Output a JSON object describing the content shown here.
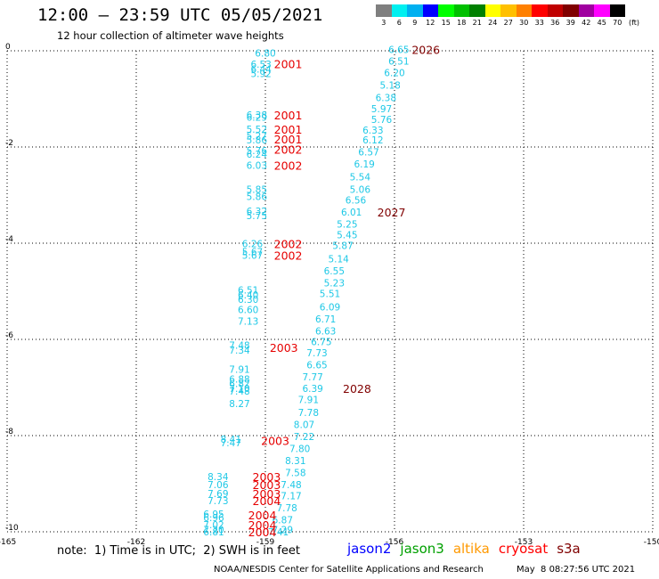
{
  "header": {
    "title": "12:00 – 23:59 UTC 05/05/2021",
    "subtitle": "12 hour collection of altimeter wave heights"
  },
  "legend": {
    "unit": "(ft)",
    "bins": [
      {
        "label": "3",
        "color": "#7f7f7f"
      },
      {
        "label": "6",
        "color": "#00f0f0"
      },
      {
        "label": "9",
        "color": "#00b0f0"
      },
      {
        "label": "12",
        "color": "#0000ff"
      },
      {
        "label": "15",
        "color": "#00ff00"
      },
      {
        "label": "18",
        "color": "#00c000"
      },
      {
        "label": "21",
        "color": "#008000"
      },
      {
        "label": "24",
        "color": "#ffff00"
      },
      {
        "label": "27",
        "color": "#ffc000"
      },
      {
        "label": "30",
        "color": "#ff8000"
      },
      {
        "label": "33",
        "color": "#ff0000"
      },
      {
        "label": "36",
        "color": "#c00000"
      },
      {
        "label": "39",
        "color": "#800000"
      },
      {
        "label": "42",
        "color": "#a000a0"
      },
      {
        "label": "45",
        "color": "#ff00ff"
      },
      {
        "label": "70",
        "color": "#000000"
      }
    ]
  },
  "footer": {
    "note": "note:  1) Time is in UTC;  2) SWH is in feet",
    "satellites": [
      {
        "name": "jason2",
        "color": "#0000ff"
      },
      {
        "name": "jason3",
        "color": "#00a000"
      },
      {
        "name": "altika",
        "color": "#ff9900"
      },
      {
        "name": "cryosat",
        "color": "#ff0000"
      },
      {
        "name": "s3a",
        "color": "#800000"
      }
    ],
    "credit": "NOAA/NESDIS Center for Satellite Applications and Research",
    "timestamp": "May  8 08:27:56 UTC 2021"
  },
  "chart_data": {
    "type": "scatter",
    "title": "12 hour collection of altimeter wave heights",
    "xlabel": "",
    "ylabel": "",
    "xlim": [
      -165,
      -150
    ],
    "ylim": [
      -10,
      0
    ],
    "x_ticks": [
      "-165",
      "-162",
      "-159",
      "-156",
      "-153",
      "-150"
    ],
    "y_ticks": [
      "0",
      "-2",
      "-4",
      "-6",
      "-8",
      "-10"
    ],
    "grid": true,
    "colors": {
      "swh": "#1ec8e6",
      "time": "#e60000",
      "time_dark": "#800000"
    },
    "series": [
      {
        "points": [
          {
            "x": -159.0,
            "y": -0.05,
            "v": "6.80"
          },
          {
            "x": -159.1,
            "y": -0.28,
            "v": "6.53"
          },
          {
            "x": -159.1,
            "y": -0.38,
            "v": "6.44"
          },
          {
            "x": -159.1,
            "y": -0.47,
            "v": "5.92"
          },
          {
            "x": -159.2,
            "y": -1.33,
            "v": "6.38"
          },
          {
            "x": -159.2,
            "y": -1.38,
            "v": "6.29"
          },
          {
            "x": -159.2,
            "y": -1.63,
            "v": "5.52"
          },
          {
            "x": -159.2,
            "y": -1.77,
            "v": "5.27"
          },
          {
            "x": -159.2,
            "y": -1.85,
            "v": "5.86"
          },
          {
            "x": -159.2,
            "y": -2.07,
            "v": "5.76"
          },
          {
            "x": -159.2,
            "y": -2.15,
            "v": "6.24"
          },
          {
            "x": -159.2,
            "y": -2.38,
            "v": "6.03"
          },
          {
            "x": -159.2,
            "y": -2.88,
            "v": "5.85"
          },
          {
            "x": -159.2,
            "y": -3.03,
            "v": "5.86"
          },
          {
            "x": -159.2,
            "y": -3.33,
            "v": "6.32"
          },
          {
            "x": -159.2,
            "y": -3.43,
            "v": "5.75"
          },
          {
            "x": -159.3,
            "y": -4.01,
            "v": "6.26"
          },
          {
            "x": -159.3,
            "y": -4.18,
            "v": "5.67"
          },
          {
            "x": -159.3,
            "y": -4.25,
            "v": "5.67"
          },
          {
            "x": -159.4,
            "y": -4.97,
            "v": "6.51"
          },
          {
            "x": -159.4,
            "y": -5.07,
            "v": "6.40"
          },
          {
            "x": -159.4,
            "y": -5.17,
            "v": "6.30"
          },
          {
            "x": -159.4,
            "y": -5.38,
            "v": "6.60"
          },
          {
            "x": -159.4,
            "y": -5.62,
            "v": "7.13"
          },
          {
            "x": -159.6,
            "y": -6.12,
            "v": "7.48"
          },
          {
            "x": -159.6,
            "y": -6.22,
            "v": "7.34"
          },
          {
            "x": -159.6,
            "y": -6.62,
            "v": "7.91"
          },
          {
            "x": -159.6,
            "y": -6.82,
            "v": "6.88"
          },
          {
            "x": -159.6,
            "y": -6.92,
            "v": "6.82"
          },
          {
            "x": -159.6,
            "y": -7.02,
            "v": "7.10"
          },
          {
            "x": -159.6,
            "y": -7.07,
            "v": "7.48"
          },
          {
            "x": -159.6,
            "y": -7.33,
            "v": "8.27"
          },
          {
            "x": -159.8,
            "y": -8.07,
            "v": "8.41"
          },
          {
            "x": -159.8,
            "y": -8.15,
            "v": "7.47"
          },
          {
            "x": -160.1,
            "y": -8.85,
            "v": "8.34"
          },
          {
            "x": -160.1,
            "y": -9.02,
            "v": "7.06"
          },
          {
            "x": -160.1,
            "y": -9.2,
            "v": "7.69"
          },
          {
            "x": -160.1,
            "y": -9.35,
            "v": "7.73"
          },
          {
            "x": -160.2,
            "y": -9.63,
            "v": "6.95"
          },
          {
            "x": -160.2,
            "y": -9.7,
            "v": "6.96"
          },
          {
            "x": -160.2,
            "y": -9.85,
            "v": "7.02"
          },
          {
            "x": -160.2,
            "y": -9.95,
            "v": "7.20"
          },
          {
            "x": -160.2,
            "y": -10.0,
            "v": "6.81"
          },
          {
            "x": -155.9,
            "y": 0.03,
            "v": "6.65"
          },
          {
            "x": -155.9,
            "y": -0.21,
            "v": "6.51"
          },
          {
            "x": -156.0,
            "y": -0.45,
            "v": "6.20"
          },
          {
            "x": -156.1,
            "y": -0.71,
            "v": "5.18"
          },
          {
            "x": -156.2,
            "y": -0.97,
            "v": "6.38"
          },
          {
            "x": -156.3,
            "y": -1.2,
            "v": "5.97"
          },
          {
            "x": -156.3,
            "y": -1.43,
            "v": "5.76"
          },
          {
            "x": -156.5,
            "y": -1.65,
            "v": "6.33"
          },
          {
            "x": -156.5,
            "y": -1.85,
            "v": "6.12"
          },
          {
            "x": -156.6,
            "y": -2.1,
            "v": "6.57"
          },
          {
            "x": -156.7,
            "y": -2.35,
            "v": "6.19"
          },
          {
            "x": -156.8,
            "y": -2.62,
            "v": "5.54"
          },
          {
            "x": -156.8,
            "y": -2.88,
            "v": "5.06"
          },
          {
            "x": -156.9,
            "y": -3.1,
            "v": "6.56"
          },
          {
            "x": -157.0,
            "y": -3.35,
            "v": "6.01"
          },
          {
            "x": -157.1,
            "y": -3.6,
            "v": "5.25"
          },
          {
            "x": -157.1,
            "y": -3.82,
            "v": "5.45"
          },
          {
            "x": -157.2,
            "y": -4.05,
            "v": "5.87"
          },
          {
            "x": -157.3,
            "y": -4.32,
            "v": "5.14"
          },
          {
            "x": -157.4,
            "y": -4.57,
            "v": "6.55"
          },
          {
            "x": -157.4,
            "y": -4.82,
            "v": "5.23"
          },
          {
            "x": -157.5,
            "y": -5.05,
            "v": "5.51"
          },
          {
            "x": -157.5,
            "y": -5.32,
            "v": "6.09"
          },
          {
            "x": -157.6,
            "y": -5.57,
            "v": "6.71"
          },
          {
            "x": -157.6,
            "y": -5.82,
            "v": "6.63"
          },
          {
            "x": -157.7,
            "y": -6.05,
            "v": "6.75"
          },
          {
            "x": -157.8,
            "y": -6.28,
            "v": "7.73"
          },
          {
            "x": -157.8,
            "y": -6.53,
            "v": "6.65"
          },
          {
            "x": -157.9,
            "y": -6.78,
            "v": "7.77"
          },
          {
            "x": -157.9,
            "y": -7.02,
            "v": "6.39"
          },
          {
            "x": -158.0,
            "y": -7.25,
            "v": "7.91"
          },
          {
            "x": -158.0,
            "y": -7.52,
            "v": "7.78"
          },
          {
            "x": -158.1,
            "y": -7.77,
            "v": "8.07"
          },
          {
            "x": -158.1,
            "y": -8.02,
            "v": "7.22"
          },
          {
            "x": -158.2,
            "y": -8.27,
            "v": "7.80"
          },
          {
            "x": -158.3,
            "y": -8.52,
            "v": "8.31"
          },
          {
            "x": -158.3,
            "y": -8.77,
            "v": "7.58"
          },
          {
            "x": -158.4,
            "y": -9.02,
            "v": "7.48"
          },
          {
            "x": -158.4,
            "y": -9.25,
            "v": "7.17"
          },
          {
            "x": -158.5,
            "y": -9.5,
            "v": "7.78"
          },
          {
            "x": -158.6,
            "y": -9.75,
            "v": "6.87"
          },
          {
            "x": -158.6,
            "y": -9.95,
            "v": "7.29"
          },
          {
            "x": -158.7,
            "y": -10.0,
            "v": "7.41"
          }
        ]
      }
    ],
    "annotations": [
      {
        "x": -158.8,
        "y": -0.27,
        "text": "2001",
        "dark": false
      },
      {
        "x": -158.8,
        "y": -1.33,
        "text": "2001",
        "dark": false
      },
      {
        "x": -158.8,
        "y": -1.63,
        "text": "2001",
        "dark": false
      },
      {
        "x": -158.8,
        "y": -1.83,
        "text": "2001",
        "dark": false
      },
      {
        "x": -158.8,
        "y": -2.05,
        "text": "2002",
        "dark": false
      },
      {
        "x": -158.8,
        "y": -2.38,
        "text": "2002",
        "dark": false
      },
      {
        "x": -158.8,
        "y": -4.01,
        "text": "2002",
        "dark": false
      },
      {
        "x": -158.8,
        "y": -4.25,
        "text": "2002",
        "dark": false
      },
      {
        "x": -158.9,
        "y": -6.17,
        "text": "2003",
        "dark": false
      },
      {
        "x": -159.1,
        "y": -8.1,
        "text": "2003",
        "dark": false
      },
      {
        "x": -159.3,
        "y": -8.85,
        "text": "2003",
        "dark": false
      },
      {
        "x": -159.3,
        "y": -9.02,
        "text": "2003",
        "dark": false
      },
      {
        "x": -159.3,
        "y": -9.2,
        "text": "2003",
        "dark": false
      },
      {
        "x": -159.3,
        "y": -9.35,
        "text": "2004",
        "dark": false
      },
      {
        "x": -159.4,
        "y": -9.65,
        "text": "2004",
        "dark": false
      },
      {
        "x": -159.4,
        "y": -9.85,
        "text": "2004",
        "dark": false
      },
      {
        "x": -159.4,
        "y": -10.0,
        "text": "2004",
        "dark": false
      },
      {
        "x": -155.6,
        "y": 0.03,
        "text": "2026",
        "dark": true
      },
      {
        "x": -156.4,
        "y": -3.35,
        "text": "2027",
        "dark": true
      },
      {
        "x": -157.2,
        "y": -7.02,
        "text": "2028",
        "dark": true
      }
    ]
  }
}
